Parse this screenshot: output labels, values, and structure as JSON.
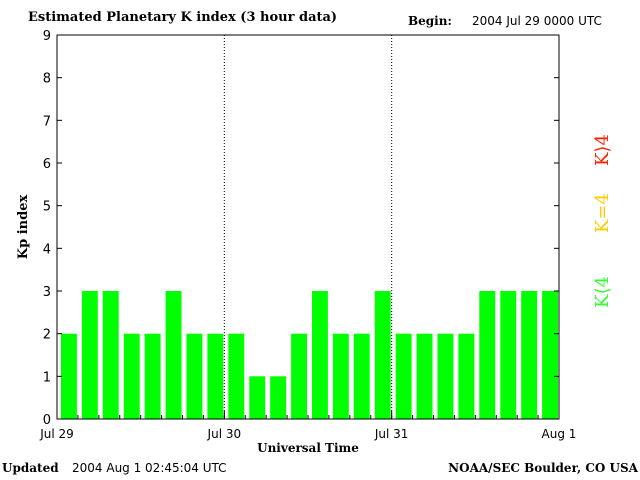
{
  "header": {
    "title": "Estimated Planetary K index (3 hour data)",
    "begin_label": "Begin:",
    "begin_value": "2004 Jul 29 0000 UTC"
  },
  "footer": {
    "updated_label": "Updated",
    "updated_value": "2004 Aug  1 02:45:04 UTC",
    "credit": "NOAA/SEC Boulder, CO USA"
  },
  "legend": {
    "storm": {
      "label": "K⟩4",
      "color": "#ff2000"
    },
    "active": {
      "label": "K=4",
      "color": "#ffcc00"
    },
    "quiet": {
      "label": "K⟨4",
      "color": "#33ff33"
    }
  },
  "chart_data": {
    "type": "bar",
    "title": "Estimated Planetary K index (3 hour data)",
    "xlabel": "Universal Time",
    "ylabel": "Kp index",
    "ylim": [
      0,
      9
    ],
    "yticks": [
      0,
      1,
      2,
      3,
      4,
      5,
      6,
      7,
      8,
      9
    ],
    "xtick_labels": [
      "Jul 29",
      "Jul 30",
      "Jul 31",
      "Aug 1"
    ],
    "bar_color": "#00ff00",
    "series": [
      {
        "values": [
          2,
          3,
          3,
          2,
          2,
          3,
          2,
          2,
          2,
          1,
          1,
          2,
          3,
          2,
          2,
          3,
          2,
          2,
          2,
          2,
          3,
          3,
          3,
          3
        ]
      }
    ]
  }
}
